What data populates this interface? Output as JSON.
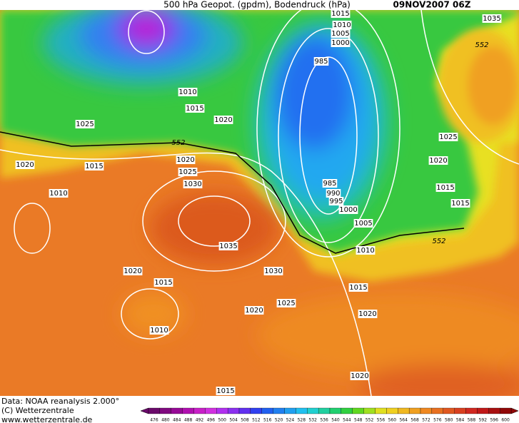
{
  "header": {
    "title": "500 hPa Geopot. (gpdm), Bodendruck (hPa)",
    "date": "09NOV2007 06Z"
  },
  "isobar_labels": [
    1015,
    1010,
    1005,
    1000,
    985,
    1010,
    1015,
    1020,
    1025,
    552,
    1020,
    1025,
    1030,
    1020,
    1015,
    1010,
    985,
    990,
    995,
    1000,
    1005,
    1010,
    552,
    1035,
    1030,
    1020,
    1015,
    1015,
    1025,
    1020,
    1020,
    1010,
    1020,
    1015,
    1035,
    552,
    1025,
    1020,
    1015,
    1015
  ],
  "footer": {
    "lines": [
      "Data: NOAA reanalysis 2.000°",
      "(C) Wetterzentrale",
      "www.wetterzentrale.de"
    ]
  },
  "colorbar": {
    "labels": [
      476,
      480,
      484,
      488,
      492,
      496,
      500,
      504,
      508,
      512,
      516,
      520,
      524,
      528,
      532,
      536,
      540,
      544,
      548,
      552,
      556,
      560,
      564,
      568,
      572,
      576,
      580,
      584,
      588,
      592,
      596,
      600
    ],
    "colors": [
      "#6a0a6a",
      "#800a80",
      "#960a96",
      "#b010b0",
      "#c820c8",
      "#d030e0",
      "#b030f0",
      "#8a30f0",
      "#6030f0",
      "#3040f0",
      "#2060f0",
      "#2080f0",
      "#20a0f0",
      "#20c0f0",
      "#20d0d0",
      "#20d0a0",
      "#20d070",
      "#30d040",
      "#60d820",
      "#a0e020",
      "#e0e020",
      "#f0d020",
      "#f0b820",
      "#f0a020",
      "#f08820",
      "#e87020",
      "#e05820",
      "#d84020",
      "#d02820",
      "#c01818",
      "#a81010",
      "#900808"
    ]
  }
}
